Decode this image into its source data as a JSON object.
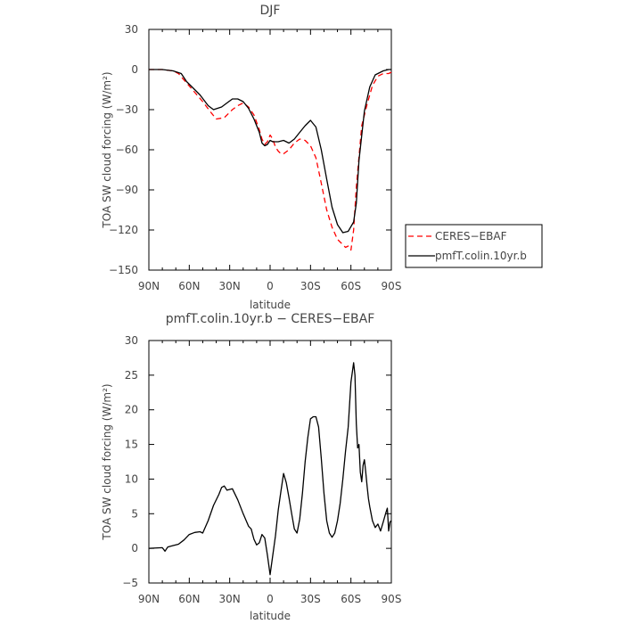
{
  "chart_data": [
    {
      "type": "line",
      "title": "DJF",
      "xlabel": "latitude",
      "ylabel": "TOA SW cloud forcing (W/m²)",
      "xlim": [
        90,
        -90
      ],
      "ylim": [
        -150,
        30
      ],
      "x_ticks": [
        90,
        60,
        30,
        0,
        -30,
        -60,
        -90
      ],
      "x_tick_labels": [
        "90N",
        "60N",
        "30N",
        "0",
        "30S",
        "60S",
        "90S"
      ],
      "y_ticks": [
        30,
        0,
        -30,
        -60,
        -90,
        -120,
        -150
      ],
      "y_tick_labels": [
        "30",
        "0",
        "−30",
        "−60",
        "−90",
        "−120",
        "−150"
      ],
      "legend": {
        "placement": "right"
      },
      "series": [
        {
          "name": "CERES−EBAF",
          "color": "#ff0000",
          "style": "dashed",
          "x": [
            90,
            80,
            72,
            68,
            62,
            56,
            50,
            44,
            40,
            34,
            28,
            24,
            20,
            16,
            12,
            8,
            6,
            4,
            2,
            0,
            -2,
            -4,
            -6,
            -8,
            -10,
            -14,
            -18,
            -22,
            -26,
            -30,
            -34,
            -38,
            -42,
            -46,
            -50,
            -54,
            -56,
            -58,
            -60,
            -62,
            -64,
            -68,
            -72,
            -76,
            -80,
            -84,
            -88,
            -90
          ],
          "y": [
            0,
            0,
            -1,
            -3,
            -10,
            -17,
            -24,
            -32,
            -37,
            -36,
            -30,
            -27,
            -25,
            -28,
            -34,
            -45,
            -52,
            -56,
            -54,
            -49,
            -52,
            -58,
            -61,
            -63,
            -63,
            -60,
            -55,
            -52,
            -53,
            -57,
            -66,
            -85,
            -105,
            -118,
            -127,
            -131,
            -133,
            -132,
            -135,
            -120,
            -88,
            -42,
            -26,
            -12,
            -5,
            -3,
            -3,
            -2
          ]
        },
        {
          "name": "pmfT.colin.10yr.b",
          "color": "#000000",
          "style": "solid",
          "x": [
            90,
            80,
            72,
            66,
            62,
            58,
            52,
            46,
            42,
            36,
            32,
            28,
            24,
            20,
            16,
            12,
            8,
            6,
            4,
            2,
            0,
            -2,
            -6,
            -10,
            -14,
            -18,
            -22,
            -26,
            -30,
            -34,
            -38,
            -42,
            -46,
            -50,
            -54,
            -58,
            -62,
            -64,
            -66,
            -70,
            -74,
            -78,
            -84,
            -88,
            -90
          ],
          "y": [
            0,
            0,
            -1,
            -3,
            -9,
            -13,
            -19,
            -27,
            -30,
            -28,
            -25,
            -22,
            -22,
            -24,
            -29,
            -37,
            -47,
            -55,
            -57,
            -56,
            -53,
            -54,
            -54,
            -53,
            -55,
            -52,
            -47,
            -42,
            -38,
            -43,
            -60,
            -82,
            -103,
            -116,
            -122,
            -121,
            -114,
            -100,
            -68,
            -31,
            -13,
            -4,
            -1,
            0,
            0
          ]
        }
      ]
    },
    {
      "type": "line",
      "title": "pmfT.colin.10yr.b − CERES−EBAF",
      "xlabel": "latitude",
      "ylabel": "TOA SW cloud forcing (W/m²)",
      "xlim": [
        90,
        -90
      ],
      "ylim": [
        -5,
        30
      ],
      "x_ticks": [
        90,
        60,
        30,
        0,
        -30,
        -60,
        -90
      ],
      "x_tick_labels": [
        "90N",
        "60N",
        "30N",
        "0",
        "30S",
        "60S",
        "90S"
      ],
      "y_ticks": [
        30,
        25,
        20,
        15,
        10,
        5,
        0,
        -5
      ],
      "y_tick_labels": [
        "30",
        "25",
        "20",
        "15",
        "10",
        "5",
        "0",
        "−5"
      ],
      "series": [
        {
          "name": "",
          "color": "#000000",
          "style": "solid",
          "x": [
            90,
            80,
            78,
            76,
            72,
            68,
            64,
            60,
            56,
            52,
            50,
            46,
            42,
            38,
            36,
            34,
            32,
            28,
            24,
            20,
            16,
            14,
            12,
            10,
            8,
            6,
            4,
            2,
            0,
            -2,
            -4,
            -6,
            -8,
            -10,
            -12,
            -14,
            -16,
            -18,
            -20,
            -22,
            -24,
            -26,
            -28,
            -30,
            -32,
            -34,
            -36,
            -38,
            -40,
            -42,
            -44,
            -46,
            -48,
            -50,
            -52,
            -54,
            -56,
            -58,
            -60,
            -62,
            -63,
            -64,
            -65,
            -66,
            -67,
            -68,
            -69,
            -70,
            -71,
            -72,
            -73,
            -74,
            -76,
            -78,
            -80,
            -82,
            -84,
            -86,
            -87,
            -88,
            -89,
            -90
          ],
          "y": [
            0,
            0.1,
            -0.4,
            0.2,
            0.4,
            0.6,
            1.2,
            2.0,
            2.3,
            2.4,
            2.2,
            4.0,
            6.2,
            7.8,
            8.8,
            9.0,
            8.4,
            8.6,
            7.0,
            5.0,
            3.2,
            2.8,
            1.3,
            0.5,
            0.8,
            2.0,
            1.5,
            -1.0,
            -3.8,
            -1.0,
            1.8,
            5.5,
            8.2,
            10.8,
            9.5,
            7.3,
            5.0,
            2.8,
            2.2,
            4.2,
            8.0,
            12.5,
            16.0,
            18.7,
            19.0,
            19.0,
            17.5,
            13.0,
            8.0,
            4.0,
            2.2,
            1.6,
            2.2,
            4.0,
            6.5,
            10.0,
            14.0,
            17.5,
            24.0,
            26.8,
            25.0,
            18.0,
            14.5,
            15.0,
            11.0,
            9.6,
            12.0,
            12.8,
            11.0,
            9.0,
            7.2,
            6.0,
            4.0,
            3.0,
            3.5,
            2.5,
            3.8,
            5.2,
            5.8,
            2.5,
            3.8,
            4.0
          ]
        }
      ]
    }
  ]
}
